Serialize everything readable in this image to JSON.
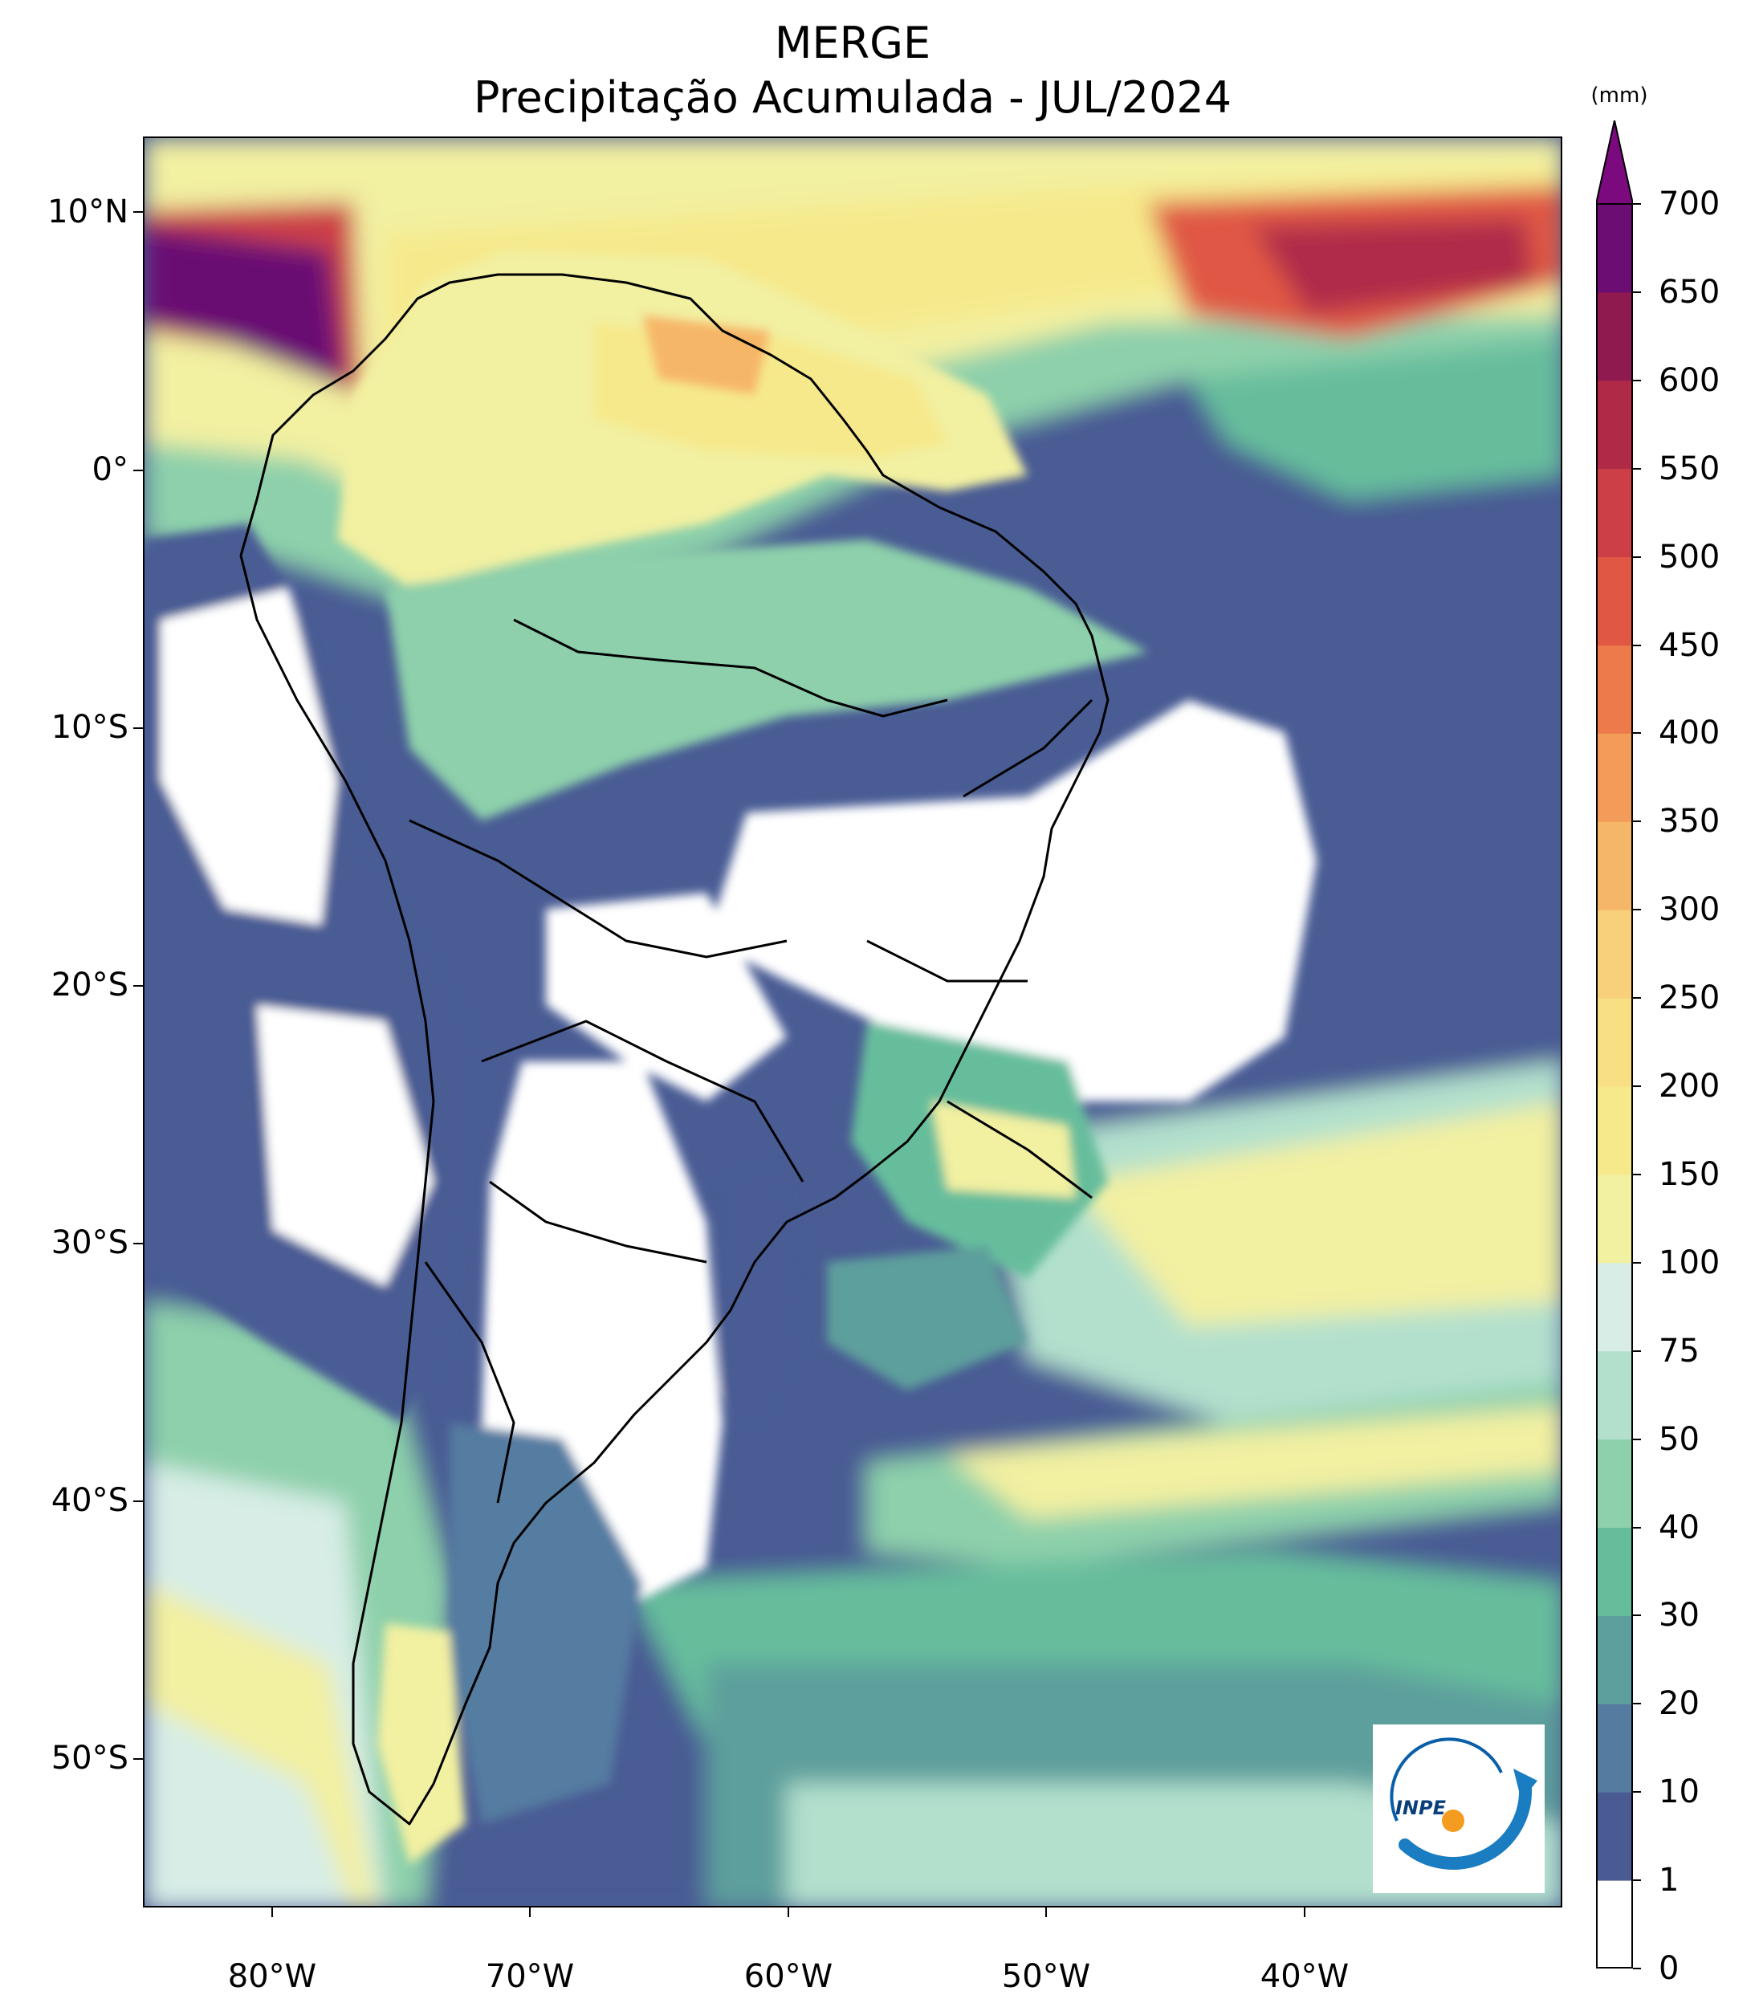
{
  "title": {
    "line1": "MERGE",
    "line2": "Precipitação Acumulada - JUL/2024"
  },
  "map": {
    "lat_ticks": [
      "10°N",
      "0°",
      "10°S",
      "20°S",
      "30°S",
      "40°S",
      "50°S"
    ],
    "lon_ticks": [
      "80°W",
      "70°W",
      "60°W",
      "50°W",
      "40°W"
    ],
    "extent": {
      "lon_min": -85,
      "lon_max": -30,
      "lat_min": -56,
      "lat_max": 13
    }
  },
  "colorbar": {
    "unit": "(mm)",
    "levels": [
      "0",
      "1",
      "10",
      "20",
      "30",
      "40",
      "50",
      "75",
      "100",
      "150",
      "200",
      "250",
      "300",
      "350",
      "400",
      "450",
      "500",
      "550",
      "600",
      "650",
      "700"
    ],
    "colors": [
      "#ffffff",
      "#4a5b94",
      "#557ba1",
      "#5d9f9c",
      "#66bd9c",
      "#8dd0ab",
      "#b2e0cd",
      "#d7ede6",
      "#f2f0a1",
      "#f6e98c",
      "#f8df84",
      "#f8cf7a",
      "#f6b668",
      "#f39c59",
      "#ec7a4a",
      "#e05844",
      "#cc3f46",
      "#b02a48",
      "#8e1a4f",
      "#6b0d73"
    ],
    "extend_color": "#7b0a7e"
  },
  "logo": {
    "text": "INPE"
  }
}
